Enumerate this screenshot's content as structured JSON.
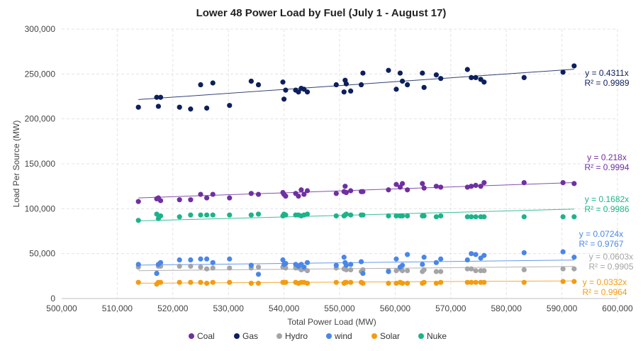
{
  "chart_data": {
    "type": "scatter",
    "title": "Lower 48 Power Load by Fuel (July 1 - August 17)",
    "xlabel": "Total Power Load (MW)",
    "ylabel": "Load Per Source (MW)",
    "xlim": [
      500000,
      600000
    ],
    "ylim": [
      0,
      300000
    ],
    "xticks": [
      500000,
      510000,
      520000,
      530000,
      540000,
      550000,
      560000,
      570000,
      580000,
      590000,
      600000
    ],
    "yticks": [
      0,
      50000,
      100000,
      150000,
      200000,
      250000,
      300000
    ],
    "x_tick_labels": [
      "500,000",
      "510,000",
      "520,000",
      "530,000",
      "540,000",
      "550,000",
      "560,000",
      "570,000",
      "580,000",
      "590,000",
      "600,000"
    ],
    "y_tick_labels": [
      "0",
      "50,000",
      "100,000",
      "150,000",
      "200,000",
      "250,000",
      "300,000"
    ],
    "grid": "dashed",
    "legend_position": "bottom",
    "x": [
      513800,
      517100,
      517400,
      517800,
      521200,
      523200,
      525000,
      526100,
      527200,
      530200,
      534100,
      535400,
      539800,
      540000,
      540300,
      542100,
      542600,
      543100,
      543600,
      544200,
      549400,
      550800,
      551000,
      551200,
      552000,
      553900,
      554200,
      558800,
      560200,
      560900,
      561300,
      562200,
      564900,
      565200,
      567400,
      568200,
      573000,
      573700,
      574500,
      575400,
      576000,
      583200,
      590200,
      592200
    ],
    "series": [
      {
        "name": "Coal",
        "color": "#7030A0",
        "values": [
          108000,
          111000,
          112000,
          109000,
          110000,
          110000,
          116000,
          112000,
          116000,
          112000,
          117000,
          116000,
          118000,
          116000,
          114000,
          117000,
          114000,
          121000,
          116000,
          120000,
          117000,
          119000,
          125000,
          118000,
          120000,
          119000,
          119000,
          121000,
          127000,
          124000,
          128000,
          121000,
          128000,
          123000,
          125000,
          124000,
          124000,
          125000,
          126000,
          125000,
          129000,
          129000,
          129000,
          128000
        ],
        "trend_label": "y = 0.218x",
        "r2_label": "R² = 0.9994"
      },
      {
        "name": "Gas",
        "color": "#0D1F5C",
        "values": [
          213000,
          224000,
          214000,
          224000,
          213000,
          211000,
          238000,
          212000,
          240000,
          215000,
          242000,
          238000,
          241000,
          222000,
          232000,
          232000,
          230000,
          234000,
          233000,
          230000,
          238000,
          230000,
          243000,
          239000,
          231000,
          238000,
          251000,
          254000,
          233000,
          251000,
          242000,
          238000,
          251000,
          235000,
          249000,
          245000,
          255000,
          246000,
          246000,
          244000,
          241000,
          246000,
          252000,
          259000
        ],
        "trend_label": "y = 0.4311x",
        "r2_label": "R² = 0.9989"
      },
      {
        "name": "Hydro",
        "color": "#A5A5A5",
        "values": [
          35000,
          28000,
          36000,
          36000,
          36000,
          36000,
          35000,
          33000,
          34000,
          34000,
          34000,
          35000,
          35000,
          35000,
          34000,
          34000,
          34000,
          32000,
          33000,
          31000,
          34000,
          33000,
          34000,
          32000,
          32000,
          30000,
          32000,
          31000,
          31000,
          33000,
          31000,
          31000,
          30000,
          32000,
          30000,
          30000,
          33000,
          33000,
          31000,
          31000,
          31000,
          32000,
          33000,
          33000
        ],
        "trend_label": "y = 0.0603x",
        "r2_label": "R² = 0.9905"
      },
      {
        "name": "wind",
        "color": "#4A86E8",
        "values": [
          38000,
          28000,
          38000,
          40000,
          43000,
          43000,
          44000,
          44000,
          40000,
          44000,
          37000,
          27000,
          43000,
          38000,
          39000,
          38000,
          36000,
          38000,
          35000,
          40000,
          37000,
          46000,
          40000,
          37000,
          38000,
          41000,
          28000,
          30000,
          44000,
          35000,
          37000,
          49000,
          38000,
          46000,
          40000,
          44000,
          43000,
          50000,
          49000,
          45000,
          48000,
          51000,
          52000,
          46000
        ],
        "trend_label": "y = 0.0724x",
        "r2_label": "R² = 0.9767"
      },
      {
        "name": "Solar",
        "color": "#F39C12",
        "values": [
          18000,
          16000,
          18000,
          18000,
          18000,
          18000,
          18000,
          17000,
          18000,
          18000,
          17000,
          17000,
          18000,
          18000,
          18000,
          18000,
          17000,
          18000,
          18000,
          17000,
          18000,
          17000,
          18000,
          18000,
          18000,
          18000,
          17000,
          17000,
          17000,
          18000,
          17000,
          17000,
          17000,
          18000,
          17000,
          18000,
          18000,
          18000,
          18000,
          18000,
          18000,
          18000,
          19000,
          19000
        ],
        "trend_label": "y = 0.0332x",
        "r2_label": "R² = 0.9964"
      },
      {
        "name": "Nuke",
        "color": "#1DB38A",
        "values": [
          87000,
          94000,
          89000,
          92000,
          91000,
          93000,
          93000,
          93000,
          93000,
          93000,
          93000,
          94000,
          92000,
          94000,
          93000,
          93000,
          93000,
          92000,
          93000,
          94000,
          92000,
          92000,
          93000,
          94000,
          93000,
          93000,
          93000,
          92000,
          92000,
          92000,
          92000,
          92000,
          92000,
          92000,
          91000,
          92000,
          91000,
          91000,
          91000,
          91000,
          91000,
          91000,
          91000,
          91000
        ],
        "trend_label": "y = 0.1682x",
        "r2_label": "R² = 0.9986"
      }
    ]
  }
}
